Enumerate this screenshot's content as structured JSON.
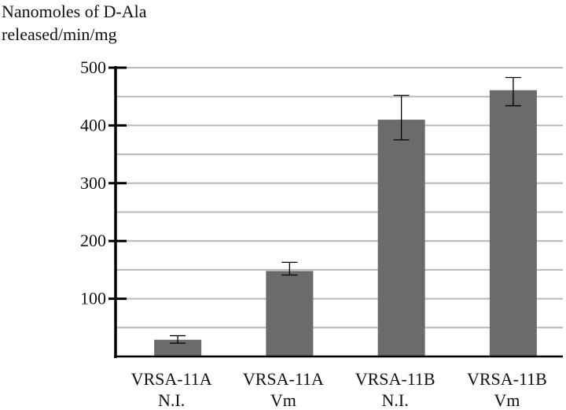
{
  "chart_data": {
    "type": "bar",
    "ylabel_lines": [
      "Nanomoles of D-Ala",
      "released/min/mg"
    ],
    "categories": [
      [
        "VRSA-11A",
        "N.I."
      ],
      [
        "VRSA-11A",
        "Vm"
      ],
      [
        "VRSA-11B",
        "N.I."
      ],
      [
        "VRSA-11B",
        "Vm"
      ]
    ],
    "values": [
      29,
      148,
      410,
      461
    ],
    "error_low": [
      23,
      141,
      375,
      434
    ],
    "error_high": [
      36,
      163,
      452,
      483
    ],
    "ylim": [
      0,
      500
    ],
    "yticks": [
      100,
      200,
      300,
      400,
      500
    ],
    "grid": true,
    "colors": {
      "bar": "#6b6b6b",
      "grid": "#b8b8b8",
      "axis": "#000000",
      "error": "#000000"
    }
  }
}
